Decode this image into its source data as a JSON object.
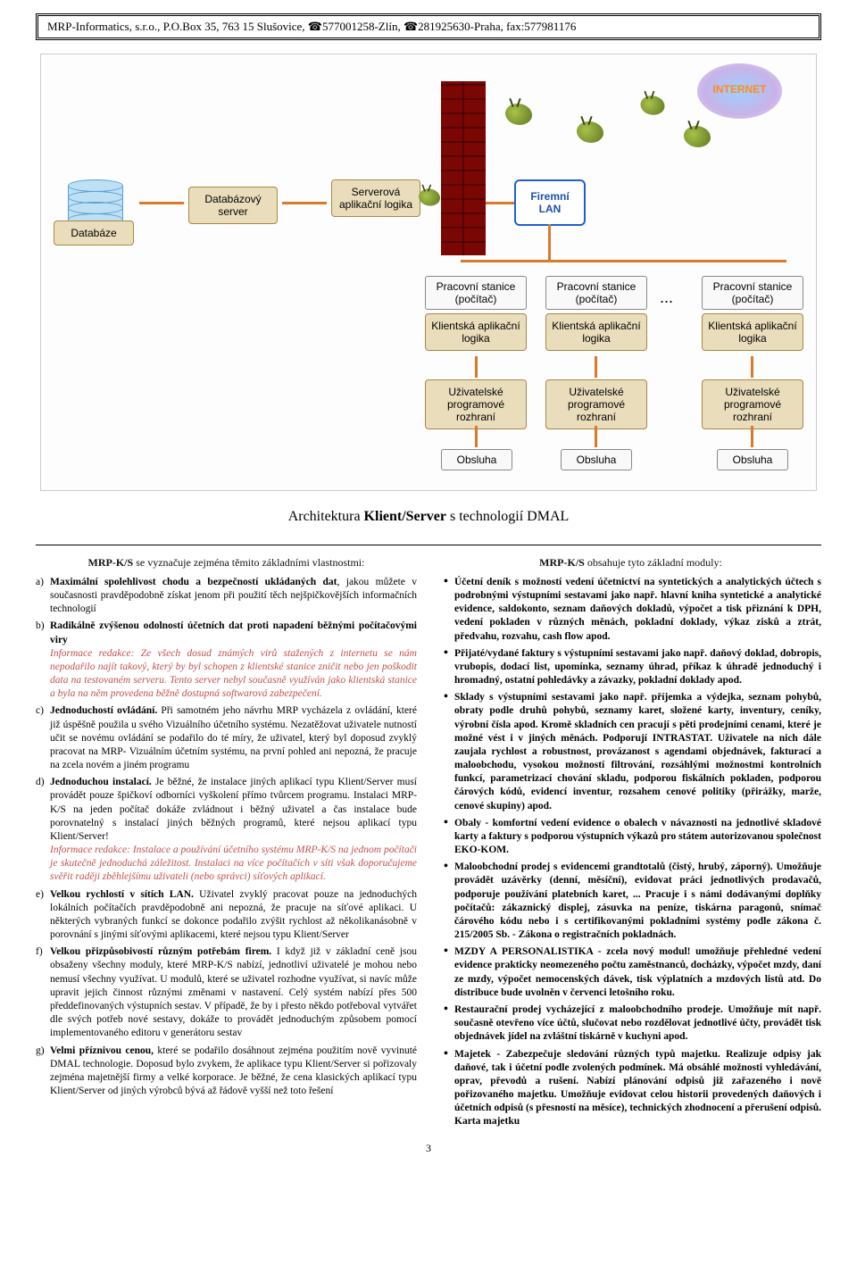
{
  "header": "MRP-Informatics, s.r.o., P.O.Box 35, 763 15 Slušovice, ☎577001258-Zlín, ☎281925630-Praha, fax:577981176",
  "caption_pre": "Architektura ",
  "caption_b": "Klient/Server",
  "caption_post": " s technologií DMAL",
  "diagram": {
    "db": "Databáze",
    "dbserver": "Databázový server",
    "serverlogic": "Serverová aplikační logika",
    "lan": "Firemní LAN",
    "ws": "Pracovní stanice (počítač)",
    "clientlogic": "Klientská aplikační logika",
    "ui": "Uživatelské programové rozhraní",
    "obsluha": "Obsluha",
    "dots": "..."
  },
  "left": {
    "title_prod": "MRP-K/S",
    "title_rest": " se vyznačuje zejména těmito základními vlastnostmi:",
    "items": [
      {
        "m": "a",
        "b": "Maximální spolehlivost chodu a bezpečností ukládaných dat",
        "text": ", jakou můžete v současnosti pravděpodobně získat jenom při použití těch nejšpičkovějších informačních technologií"
      },
      {
        "m": "b",
        "b": "Radikálně zvýšenou odolností účetních dat proti napadení běžnými počítačovými viry",
        "text": "",
        "redak": "Informace redakce: Ze všech dosud známých virů stažených z internetu se nám nepodařilo najít takový, který by byl schopen z klientské stanice zničit nebo jen poškodit data na testovaném serveru. Tento server nebyl současně využíván jako klientská stanice a byla na něm provedena běžně dostupná softwarová zabezpečení."
      },
      {
        "m": "c",
        "b": "Jednoduchostí ovládání.",
        "text": " Při samotném jeho návrhu MRP vycházela z ovládání, které již úspěšně použila u svého Vizuálního účetního systému. Nezatěžovat uživatele nutností učit se novému ovládání se podařilo do té míry, že uživatel, který byl doposud zvyklý pracovat na MRP- Vizuálním účetním systému, na první pohled ani nepozná, že pracuje na zcela novém a jiném programu"
      },
      {
        "m": "d",
        "b": "Jednoduchou instalací.",
        "text": " Je běžné, že instalace jiných aplikací typu Klient/Server musí provádět pouze špičkoví odborníci vyškolení přímo tvůrcem programu.  Instalaci MRP-K/S na jeden počítač dokáže zvládnout i běžný uživatel a čas instalace bude porovnatelný s instalací jiných běžných programů, které nejsou aplikací typu Klient/Server!",
        "redak": "Informace redakce: Instalace a používání účetního systému MRP-K/S na jednom počítači je skutečně jednoduchá záležitost. Instalaci na více počítačích v síti však doporučujeme svěřit raději zběhlejšímu uživateli (nebo správci) síťových aplikací."
      },
      {
        "m": "e",
        "b": "Velkou rychlostí v sítích LAN.",
        "text": " Uživatel zvyklý pracovat pouze na jednoduchých lokálních počítačích pravděpodobně ani nepozná, že pracuje na síťové aplikaci. U některých vybraných funkcí se dokonce podařilo zvýšit rychlost až několikanásobně v porovnání s jinými síťovými aplikacemi, které nejsou typu Klient/Server"
      },
      {
        "m": "f",
        "b": "Velkou přizpůsobivostí různým potřebám firem.",
        "text": " I když již v základní ceně jsou obsaženy všechny moduly, které MRP-K/S nabízí, jednotliví uživatelé je mohou nebo nemusí všechny využívat. U modulů, které se uživatel rozhodne využívat, si navíc může upravit jejich činnost různými změnami v nastavení. Celý systém nabízí přes 500 předdefinovaných výstupních sestav. V případě, že by i přesto někdo potřeboval vytvářet dle svých potřeb nové sestavy, dokáže to provádět jednoduchým způsobem pomocí implementovaného editoru v generátoru sestav"
      },
      {
        "m": "g",
        "b": "Velmi příznivou cenou,",
        "text": " které se podařilo dosáhnout zejména použitím nově vyvinuté DMAL technologie. Doposud bylo zvykem, že aplikace typu Klient/Server si pořizovaly zejména majetnější firmy a velké korporace. Je běžné, že cena klasických aplikací typu Klient/Server od jiných výrobců bývá až řádově vyšší než toto řešení"
      }
    ]
  },
  "right": {
    "title_prod": "MRP-K/S",
    "title_rest": " obsahuje tyto základní moduly:",
    "items": [
      {
        "b": "Účetní deník",
        "text": " s možností vedení účetnictví na syntetických a analytických účtech s podrobnými výstupními sestavami jako např. hlavní kniha syntetické a analytické evidence, saldokonto, seznam daňových dokladů, výpočet a tisk přiznání k DPH, vedení pokladen v různých měnách, pokladní doklady, výkaz zisků a ztrát, předvahu, rozvahu, cash flow apod."
      },
      {
        "b": "Přijaté/vydané faktury",
        "text": " s výstupními sestavami jako např. daňový doklad, dobropis, vrubopis, dodací list, upomínka, seznamy úhrad, příkaz k úhradě jednoduchý i hromadný, ostatní pohledávky a závazky, pokladní doklady apod."
      },
      {
        "b": "Sklady",
        "text": " s výstupními sestavami jako např. příjemka a výdejka, seznam pohybů, obraty podle druhů pohybů, seznamy karet, složené karty, inventury, ceníky, výrobní čísla apod. Kromě skladních cen pracují s pěti prodejními cenami, které je možné vést i v jiných měnách. Podporují INTRASTAT. Uživatele na nich dále zaujala rychlost a robustnost, provázanost s agendami objednávek, fakturací a maloobchodu, vysokou možností filtrování, rozsáhlými možnostmi kontrolních funkcí, parametrizací chování skladu, podporou fiskálních pokladen, podporou čárových kódů, evidencí inventur, rozsahem cenové politiky (přirážky, marže, cenové skupiny) apod."
      },
      {
        "b": "Obaly",
        "text": " - komfortní vedení evidence o obalech v návaznosti na jednotlivé skladové karty a faktury s podporou výstupních výkazů pro státem autorizovanou společnost EKO-KOM."
      },
      {
        "b": "Maloobchodní prodej",
        "text": " s evidencemi grandtotalů (čistý, hrubý, záporný). Umožňuje provádět uzávěrky (denní, měsíční), evidovat práci jednotlivých prodavačů, podporuje používání platebních karet, ... Pracuje i s námi dodávanými doplňky počítačů: zákaznický displej, zásuvka na peníze, tiskárna paragonů, snímač čárového kódu nebo i s certifikovanými pokladními systémy podle zákona č. 215/2005 Sb. - Zákona o registračních pokladnách."
      },
      {
        "b": "MZDY A PERSONALISTIKA",
        "text": " - zcela nový modul! umožňuje přehledné vedení evidence prakticky ",
        "b2": "neomezeného počtu zaměstnanců",
        "text2": ", docházky, výpočet mzdy, daní ze mzdy, výpočet nemocenských dávek, tisk výplatních a mzdových listů atd. Do distribuce bude uvolněn v červenci letošního roku."
      },
      {
        "b": "Restaurační prodej",
        "text": " vycházející z maloobchodního prodeje. Umožňuje mít např. současně otevřeno více účtů, slučovat nebo rozdělovat jednotlivé účty, provádět tisk objednávek jídel na zvláštní tiskárně v kuchyni apod."
      },
      {
        "b": "Majetek",
        "text": " - Zabezpečuje sledování různých typů majetku. Realizuje odpisy jak daňové, tak i účetní podle zvolených podmínek. Má obsáhlé možnosti vyhledávání, oprav, převodů a rušení. Nabízí plánování odpisů již zařazeného i nově pořizovaného majetku. Umožňuje evidovat celou historii provedených daňových i účetních odpisů (s přesností na měsíce), technických zhodnocení a přerušení odpisů. Karta majetku"
      }
    ]
  },
  "page_no": "3"
}
